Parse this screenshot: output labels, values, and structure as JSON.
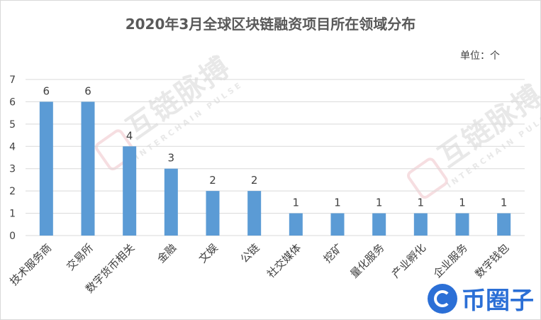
{
  "chart_data": {
    "type": "bar",
    "title": "2020年3月全球区块链融资项目所在领域分布",
    "unit_label": "单位：个",
    "categories": [
      "技术服务商",
      "交易所",
      "数字货币相关",
      "金融",
      "文娱",
      "公链",
      "社交媒体",
      "挖矿",
      "量化服务",
      "产业孵化",
      "企业服务",
      "数字钱包"
    ],
    "values": [
      6,
      6,
      4,
      3,
      2,
      2,
      1,
      1,
      1,
      1,
      1,
      1
    ],
    "xlabel": "",
    "ylabel": "",
    "ylim": [
      0,
      7
    ],
    "yticks": [
      0,
      1,
      2,
      3,
      4,
      5,
      6,
      7
    ],
    "grid": true,
    "bar_color": "#5b9bd5"
  },
  "watermark": {
    "text": "互链脉搏",
    "subtext": "INTERCHAIN PULSE"
  },
  "brand": {
    "text": "币圈子",
    "icon": "brand-logo-icon"
  }
}
